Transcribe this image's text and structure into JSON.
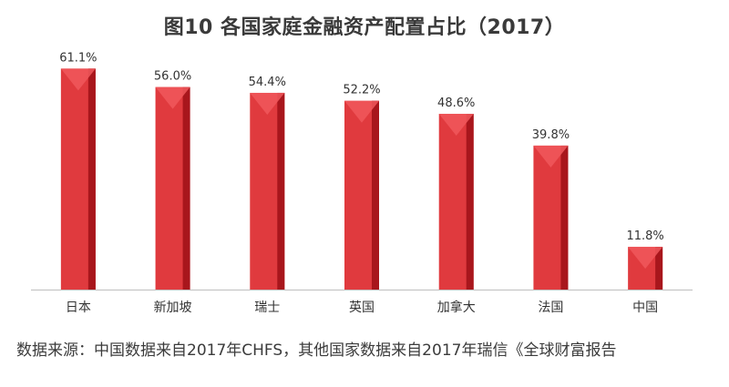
{
  "title": "图10 各国家庭金融资产配置占比（2017）",
  "source_note": "数据来源：中国数据来自2017年CHFS，其他国家数据来自2017年瑞信《全球财富报告",
  "chart_data": {
    "type": "bar",
    "title": "图10 各国家庭金融资产配置占比（2017）",
    "categories": [
      "日本",
      "新加坡",
      "瑞士",
      "英国",
      "加拿大",
      "法国",
      "中国"
    ],
    "values": [
      61.1,
      56.0,
      54.4,
      52.2,
      48.6,
      39.8,
      11.8
    ],
    "value_labels": [
      "61.1%",
      "56.0%",
      "54.4%",
      "52.2%",
      "48.6%",
      "39.8%",
      "11.8%"
    ],
    "unit": "%",
    "xlabel": "",
    "ylabel": "",
    "ylim": [
      0,
      70
    ],
    "grid": false,
    "legend": "none",
    "colors": {
      "bar_front": "#e03a3e",
      "bar_side": "#a8161c",
      "bar_top": "#f0585c",
      "axis": "#bfbfbf"
    }
  }
}
